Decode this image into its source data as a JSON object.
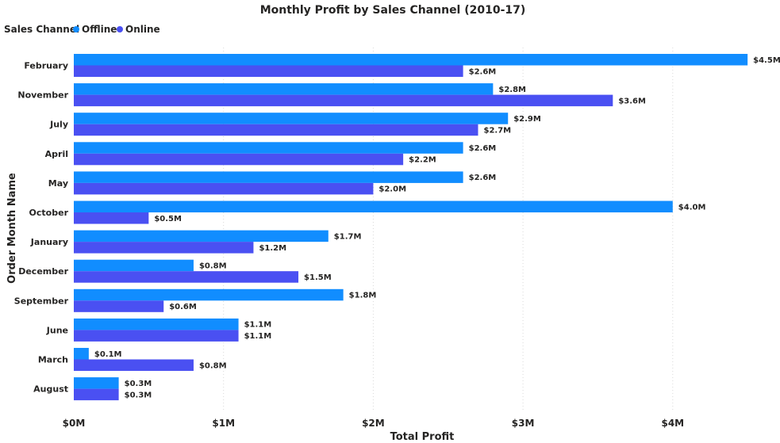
{
  "chart_data": {
    "type": "bar",
    "orientation": "horizontal",
    "title": "Monthly Profit by Sales Channel (2010-17)",
    "xlabel": "Total Profit",
    "ylabel": "Order Month Name",
    "legend_title": "Sales Channel",
    "legend_position": "top-left",
    "grid": true,
    "xlim": [
      0,
      4.5
    ],
    "x_ticks": [
      0,
      1,
      2,
      3,
      4
    ],
    "x_tick_labels": [
      "$0M",
      "$1M",
      "$2M",
      "$3M",
      "$4M"
    ],
    "categories": [
      "February",
      "November",
      "July",
      "April",
      "May",
      "October",
      "January",
      "December",
      "September",
      "June",
      "March",
      "August"
    ],
    "series": [
      {
        "name": "Offline",
        "color": "#118DFF",
        "values": [
          4.5,
          2.8,
          2.9,
          2.6,
          2.6,
          4.0,
          1.7,
          0.8,
          1.8,
          1.1,
          0.1,
          0.3
        ],
        "labels": [
          "$4.5M",
          "$2.8M",
          "$2.9M",
          "$2.6M",
          "$2.6M",
          "$4.0M",
          "$1.7M",
          "$0.8M",
          "$1.8M",
          "$1.1M",
          "$0.1M",
          "$0.3M"
        ]
      },
      {
        "name": "Online",
        "color": "#4A50F2",
        "values": [
          2.6,
          3.6,
          2.7,
          2.2,
          2.0,
          0.5,
          1.2,
          1.5,
          0.6,
          1.1,
          0.8,
          0.3
        ],
        "labels": [
          "$2.6M",
          "$3.6M",
          "$2.7M",
          "$2.2M",
          "$2.0M",
          "$0.5M",
          "$1.2M",
          "$1.5M",
          "$0.6M",
          "$1.1M",
          "$0.8M",
          "$0.3M"
        ]
      }
    ]
  }
}
